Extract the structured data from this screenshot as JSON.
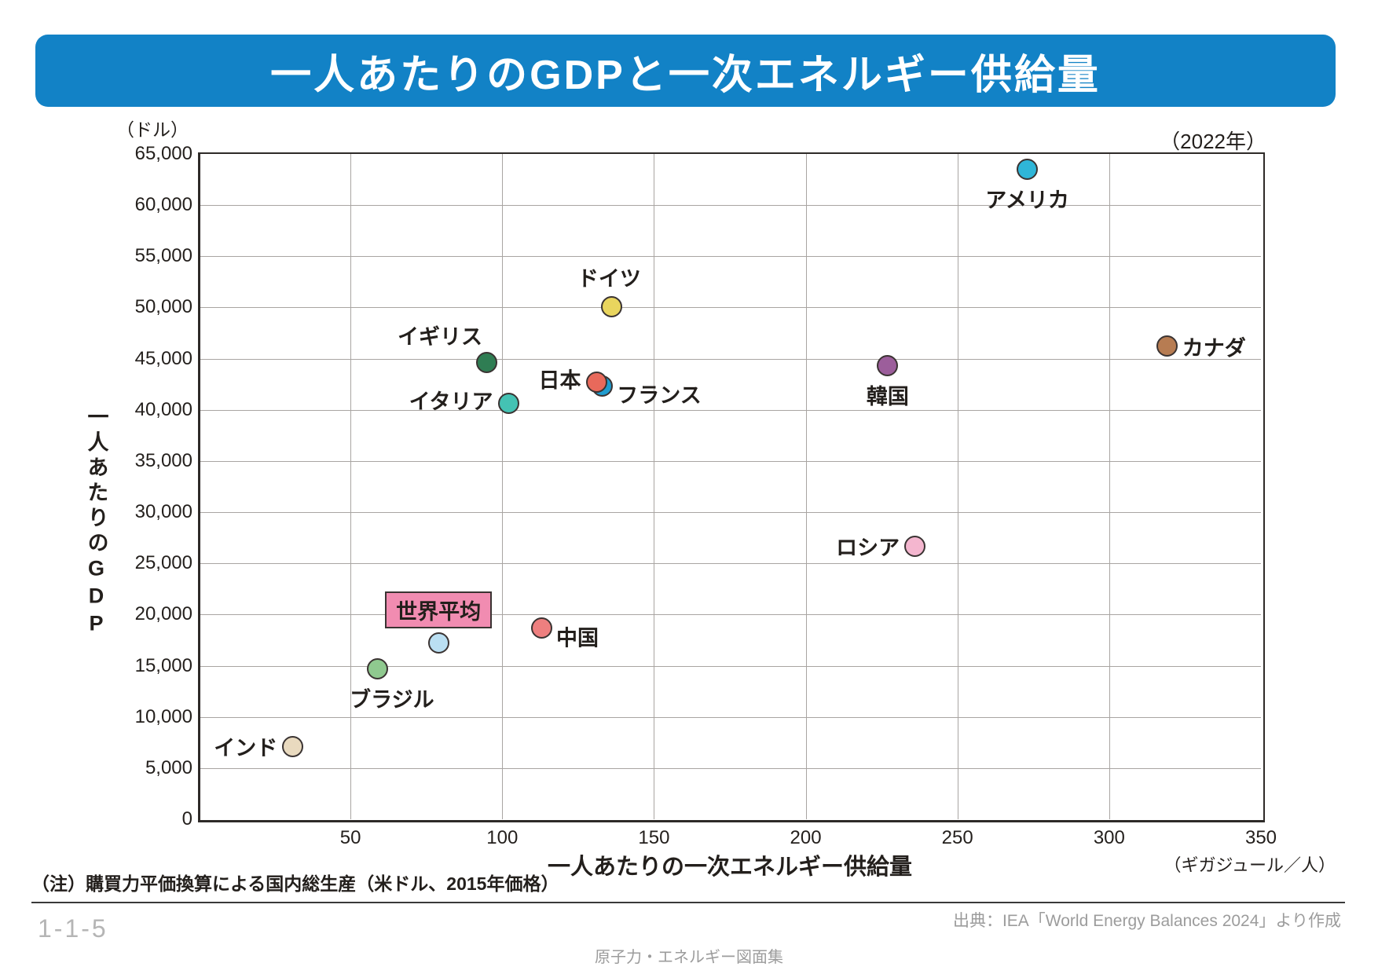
{
  "page": {
    "title": "一人あたりのGDPと一次エネルギー供給量",
    "year_label": "（2022年）",
    "note": "（注）購買力平価換算による国内総生産（米ドル、2015年価格）",
    "page_number": "1-1-5",
    "source": "出典：IEA「World Energy Balances 2024」より作成",
    "footer": "原子力・エネルギー図面集"
  },
  "colors": {
    "title_bar": "#1282c6",
    "label_box_pink": "#f18cb1",
    "dot_outline": "#3a3332",
    "grid": "#a9a5a2"
  },
  "chart_data": {
    "type": "scatter",
    "title": "一人あたりのGDPと一次エネルギー供給量",
    "year": "2022",
    "xlabel": "一人あたりの一次エネルギー供給量",
    "x_unit": "（ギガジュール／人）",
    "ylabel": "一人あたりのGDP",
    "y_unit": "（ドル）",
    "xlim": [
      0,
      350
    ],
    "ylim": [
      0,
      65000
    ],
    "grid": true,
    "x_ticks": [
      {
        "v": 50,
        "label": "50"
      },
      {
        "v": 100,
        "label": "100"
      },
      {
        "v": 150,
        "label": "150"
      },
      {
        "v": 200,
        "label": "200"
      },
      {
        "v": 250,
        "label": "250"
      },
      {
        "v": 300,
        "label": "300"
      },
      {
        "v": 350,
        "label": "350"
      }
    ],
    "y_ticks": [
      {
        "v": 0,
        "label": "0"
      },
      {
        "v": 5000,
        "label": "5,000"
      },
      {
        "v": 10000,
        "label": "10,000"
      },
      {
        "v": 15000,
        "label": "15,000"
      },
      {
        "v": 20000,
        "label": "20,000"
      },
      {
        "v": 25000,
        "label": "25,000"
      },
      {
        "v": 30000,
        "label": "30,000"
      },
      {
        "v": 35000,
        "label": "35,000"
      },
      {
        "v": 40000,
        "label": "40,000"
      },
      {
        "v": 45000,
        "label": "45,000"
      },
      {
        "v": 50000,
        "label": "50,000"
      },
      {
        "v": 55000,
        "label": "55,000"
      },
      {
        "v": 60000,
        "label": "60,000"
      },
      {
        "v": 65000,
        "label": "65,000"
      }
    ],
    "points": [
      {
        "id": "usa",
        "name": "アメリカ",
        "x": 273,
        "y": 63500,
        "color": "#2fb6d8",
        "label_pos": "below",
        "nudge": [
          0,
          0
        ]
      },
      {
        "id": "canada",
        "name": "カナダ",
        "x": 319,
        "y": 46200,
        "color": "#b77c52",
        "label_pos": "right",
        "nudge": [
          0,
          0
        ]
      },
      {
        "id": "germany",
        "name": "ドイツ",
        "x": 136,
        "y": 50100,
        "color": "#e9d55e",
        "label_pos": "above",
        "nudge": [
          -3,
          0
        ]
      },
      {
        "id": "uk",
        "name": "イギリス",
        "x": 95,
        "y": 44600,
        "color": "#2f7d53",
        "label_pos": "above-left",
        "nudge": [
          0,
          0
        ]
      },
      {
        "id": "france",
        "name": "フランス",
        "x": 133,
        "y": 42300,
        "color": "#1f9ccf",
        "label_pos": "right-below",
        "nudge": [
          0,
          0
        ]
      },
      {
        "id": "japan",
        "name": "日本",
        "x": 131,
        "y": 42700,
        "color": "#e8695b",
        "label_pos": "left",
        "nudge": [
          0,
          -5
        ]
      },
      {
        "id": "italy",
        "name": "イタリア",
        "x": 102,
        "y": 40600,
        "color": "#44c2b3",
        "label_pos": "left",
        "nudge": [
          0,
          -5
        ]
      },
      {
        "id": "korea",
        "name": "韓国",
        "x": 227,
        "y": 44300,
        "color": "#9c5e9b",
        "label_pos": "below",
        "nudge": [
          0,
          0
        ]
      },
      {
        "id": "russia",
        "name": "ロシア",
        "x": 236,
        "y": 26700,
        "color": "#f4b6cf",
        "label_pos": "left",
        "nudge": [
          0,
          0
        ]
      },
      {
        "id": "china",
        "name": "中国",
        "x": 113,
        "y": 18700,
        "color": "#ee7f7f",
        "label_pos": "right-below",
        "nudge": [
          0,
          2
        ]
      },
      {
        "id": "world-average",
        "name": "世界平均",
        "x": 79,
        "y": 17200,
        "color": "#badff2",
        "label_pos": "above",
        "boxed": true,
        "nudge": [
          0,
          0
        ]
      },
      {
        "id": "brazil",
        "name": "ブラジル",
        "x": 59,
        "y": 14700,
        "color": "#8fc98f",
        "label_pos": "below",
        "nudge": [
          18,
          0
        ]
      },
      {
        "id": "india",
        "name": "インド",
        "x": 31,
        "y": 7100,
        "color": "#e9dabf",
        "label_pos": "left",
        "nudge": [
          0,
          0
        ]
      }
    ]
  }
}
